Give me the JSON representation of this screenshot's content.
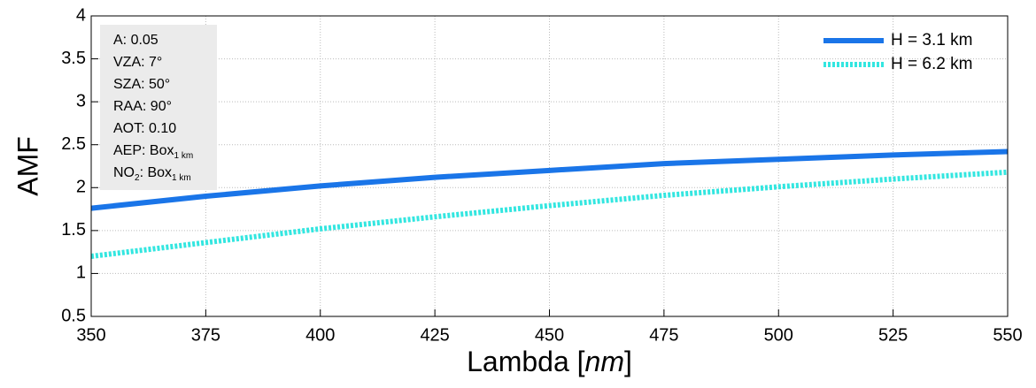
{
  "chart_data": {
    "type": "line",
    "x_label": [
      {
        "text": "Lambda ["
      },
      {
        "italic": "nm"
      },
      {
        "text": "]"
      }
    ],
    "y_label": "AMF",
    "x": [
      350,
      375,
      400,
      425,
      450,
      475,
      500,
      525,
      550
    ],
    "series": [
      {
        "name": "H = 3.1 km",
        "color": "#1a75e8",
        "style": "solid",
        "values": [
          1.76,
          1.9,
          2.02,
          2.12,
          2.2,
          2.28,
          2.33,
          2.38,
          2.42
        ]
      },
      {
        "name": "H = 6.2 km",
        "color": "#33e6e0",
        "style": "dotted",
        "values": [
          1.2,
          1.36,
          1.52,
          1.66,
          1.79,
          1.91,
          2.01,
          2.1,
          2.18
        ]
      }
    ],
    "xlim": [
      350,
      550
    ],
    "xticks": [
      350,
      375,
      400,
      425,
      450,
      475,
      500,
      525,
      550
    ],
    "ylim": [
      0.5,
      4
    ],
    "yticks": [
      0.5,
      1,
      1.5,
      2,
      2.5,
      3,
      3.5,
      4
    ],
    "grid": true,
    "legend": "top-right",
    "annotation": [
      [
        {
          "text": "A: 0.05"
        }
      ],
      [
        {
          "text": "VZA: 7°"
        }
      ],
      [
        {
          "text": "SZA: 50°"
        }
      ],
      [
        {
          "text": "RAA: 90°"
        }
      ],
      [
        {
          "text": "AOT: 0.10"
        }
      ],
      [
        {
          "text": "AEP: Box"
        },
        {
          "sub": "1 km"
        }
      ],
      [
        {
          "text": "NO"
        },
        {
          "sub": "2"
        },
        {
          "text": ": Box"
        },
        {
          "sub": "1 km"
        }
      ]
    ]
  }
}
